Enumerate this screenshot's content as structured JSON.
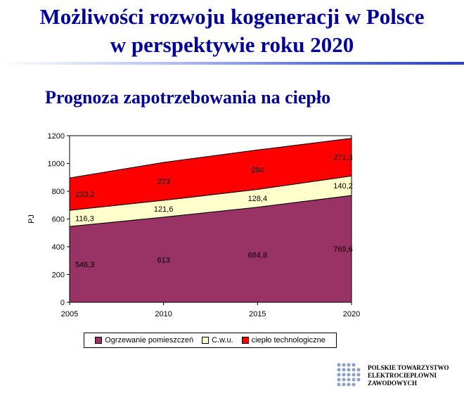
{
  "slide": {
    "title_line1": "Możliwości rozwoju kogeneracji w Polsce",
    "title_line2": "w perspektywie roku 2020",
    "subtitle": "Prognoza zapotrzebowania na ciepło"
  },
  "chart_data": {
    "type": "area",
    "stacked": true,
    "ylabel": "PJ",
    "xlabel": "",
    "x": [
      2005,
      2010,
      2015,
      2020
    ],
    "ylim": [
      0,
      1200
    ],
    "yticks": [
      0,
      200,
      400,
      600,
      800,
      1000,
      1200
    ],
    "grid": false,
    "legend_position": "bottom",
    "series": [
      {
        "name": "Ogrzewanie pomieszczeń",
        "color": "#993366",
        "values": [
          546.3,
          613,
          684.8,
          769.6
        ],
        "labels": [
          "546,3",
          "613",
          "684,8",
          "769,6"
        ]
      },
      {
        "name": "C.w.u.",
        "color": "#ffffcc",
        "values": [
          116.3,
          121.6,
          128.4,
          140.2
        ],
        "labels": [
          "116,3",
          "121,6",
          "128,4",
          "140,2"
        ]
      },
      {
        "name": "ciepło technologiczne",
        "color": "#ff0000",
        "values": [
          233.2,
          273,
          284,
          271.3
        ],
        "labels": [
          "233,2",
          "273",
          "284",
          "271,3"
        ]
      }
    ]
  },
  "logo": {
    "line1": "POLSKIE TOWARZYSTWO",
    "line2": "ELEKTROCIEPŁOWNI",
    "line3": "ZAWODOWYCH"
  }
}
